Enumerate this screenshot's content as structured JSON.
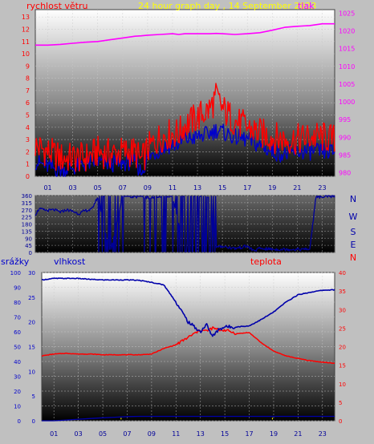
{
  "header": {
    "title": "24 hour graph day , 14 September 2023",
    "title_color": "#ffff00"
  },
  "colors": {
    "wind_gust": "#ff0000",
    "wind_avg": "#0000cc",
    "pressure": "#ff00ff",
    "direction": "#000099",
    "humidity": "#0000aa",
    "temperature": "#ff0000",
    "rain": "#0000aa",
    "sunrise_marker": "#ffff00",
    "grid": "#c8c8c8",
    "panel_top": "#ffffff",
    "panel_bottom": "#000000",
    "bg": "#c0c0c0"
  },
  "chart_data": [
    {
      "id": "wind",
      "type": "line",
      "left_label": "rychlost větru",
      "right_label": "tlak",
      "left_label_color": "#ff0000",
      "right_label_color": "#ff00ff",
      "x_tick_labels": [
        "01",
        "03",
        "05",
        "07",
        "09",
        "11",
        "13",
        "15",
        "17",
        "19",
        "21",
        "23"
      ],
      "left_ticks": [
        "0",
        "1",
        "2",
        "3",
        "4",
        "5",
        "6",
        "7",
        "8",
        "9",
        "10",
        "11",
        "12",
        "13"
      ],
      "right_ticks": [
        "980",
        "985",
        "990",
        "995",
        "1000",
        "1005",
        "1010",
        "1015",
        "1020",
        "1025"
      ],
      "xlim": [
        0,
        24
      ],
      "ylim_left": [
        0,
        13.6
      ],
      "ylim_right": [
        979,
        1026
      ],
      "hours": [
        0,
        1,
        2,
        3,
        4,
        5,
        6,
        7,
        8,
        8.5,
        9,
        10,
        11,
        11.5,
        12,
        13,
        14,
        14.5,
        15,
        16,
        17,
        18,
        19,
        20,
        21,
        22,
        23,
        24
      ],
      "series": [
        {
          "key": "gust",
          "values": [
            2.5,
            2.0,
            1.5,
            1.5,
            1.5,
            2.0,
            1.8,
            2.0,
            2.0,
            1.2,
            2.2,
            3.2,
            3.5,
            3.5,
            4.2,
            4.8,
            5.5,
            6.5,
            5.5,
            4.5,
            4.0,
            3.5,
            3.2,
            3.0,
            3.0,
            3.2,
            3.2,
            3.0
          ]
        },
        {
          "key": "avg",
          "values": [
            1.2,
            0.8,
            0.5,
            0.7,
            1.0,
            1.2,
            1.0,
            1.1,
            1.2,
            0.3,
            1.5,
            2.2,
            2.6,
            2.6,
            3.0,
            3.2,
            3.5,
            3.8,
            3.6,
            3.2,
            3.0,
            2.5,
            2.0,
            1.8,
            2.0,
            2.0,
            2.0,
            2.0
          ]
        },
        {
          "key": "pressure",
          "axis": "right",
          "values": [
            1016,
            1016,
            1016.2,
            1016.5,
            1016.8,
            1017,
            1017.5,
            1018,
            1018.5,
            1018.6,
            1018.8,
            1019,
            1019.2,
            1019,
            1019.2,
            1019.2,
            1019.2,
            1019.3,
            1019.2,
            1019,
            1019.2,
            1019.5,
            1020.2,
            1021,
            1021.3,
            1021.5,
            1022,
            1022
          ]
        }
      ]
    },
    {
      "id": "direction",
      "type": "line",
      "y_ticks": [
        "0",
        "45",
        "90",
        "135",
        "180",
        "225",
        "270",
        "315",
        "360"
      ],
      "compass": [
        "N",
        "W",
        "S",
        "E",
        "N"
      ],
      "compass_colors": [
        "#0000aa",
        "#0000aa",
        "#0000aa",
        "#0000aa",
        "#ff0000"
      ],
      "ylim": [
        0,
        360
      ],
      "xlim": [
        0,
        24
      ],
      "hours": [
        0,
        0.3,
        1,
        1.5,
        2,
        2.5,
        3,
        3.5,
        4,
        4.5,
        5,
        6,
        7,
        8,
        9,
        10,
        11,
        12,
        13,
        14,
        14.5,
        15,
        16,
        17,
        17.5,
        18,
        19,
        20,
        21,
        22,
        22.5,
        23,
        24
      ],
      "values": [
        240,
        275,
        265,
        270,
        255,
        270,
        260,
        245,
        265,
        270,
        350,
        0,
        350,
        345,
        340,
        350,
        350,
        10,
        350,
        350,
        30,
        40,
        25,
        40,
        10,
        25,
        20,
        20,
        20,
        20,
        350,
        350,
        355
      ]
    },
    {
      "id": "humidity_temperature_rain",
      "type": "line",
      "left_label": "srážky",
      "mid_label": "vlhkost",
      "right_label": "teplota",
      "left_label_color": "#0000cc",
      "mid_label_color": "#0000cc",
      "right_label_color": "#ff0000",
      "rain_ticks": [
        "0",
        "10",
        "20",
        "30",
        "40",
        "50",
        "60",
        "70",
        "80",
        "90",
        "100"
      ],
      "humidity_ticks": [
        "0",
        "5",
        "10",
        "15",
        "20",
        "25",
        "30"
      ],
      "temp_ticks": [
        "0",
        "5",
        "10",
        "15",
        "20",
        "25",
        "30",
        "35",
        "40"
      ],
      "x_tick_labels": [
        "01",
        "03",
        "05",
        "07",
        "09",
        "11",
        "13",
        "15",
        "17",
        "19",
        "21",
        "23"
      ],
      "ylim_rain": [
        0,
        100
      ],
      "ylim_humidity": [
        0,
        30
      ],
      "ylim_temp": [
        0,
        40
      ],
      "xlim": [
        0,
        24
      ],
      "hours": [
        0,
        1,
        2,
        3,
        4,
        5,
        6,
        7,
        8,
        9,
        10,
        11,
        12,
        13,
        13.5,
        14,
        14.5,
        15,
        16,
        17,
        18,
        19,
        20,
        21,
        22,
        23,
        24
      ],
      "series": [
        {
          "key": "humidity",
          "values": [
            28.5,
            28.8,
            28.8,
            28.8,
            28.6,
            28.5,
            28.5,
            28.5,
            28.4,
            28,
            27.5,
            24,
            20,
            18,
            19.5,
            17,
            18.5,
            19,
            19,
            19.2,
            20.5,
            22,
            24,
            25.5,
            26,
            26.4,
            26.5
          ]
        },
        {
          "key": "temperature",
          "values": [
            17.5,
            18,
            18.2,
            18,
            18,
            17.8,
            17.8,
            17.8,
            17.8,
            18,
            19.5,
            20.5,
            22.5,
            24.5,
            24.2,
            25,
            24.5,
            24.5,
            23.5,
            23.8,
            21,
            18.8,
            17.5,
            16.8,
            16.2,
            15.8,
            15.5
          ]
        },
        {
          "key": "rain",
          "values": [
            0,
            0,
            0.5,
            1,
            1.5,
            2,
            2.4,
            2.8,
            3,
            3,
            3,
            3,
            3,
            3,
            3,
            3,
            3,
            3,
            3,
            3,
            3,
            3,
            3,
            3,
            3,
            3,
            3
          ]
        }
      ],
      "sunrise_hour": 6.5,
      "sunset_hour": 18.9
    }
  ]
}
